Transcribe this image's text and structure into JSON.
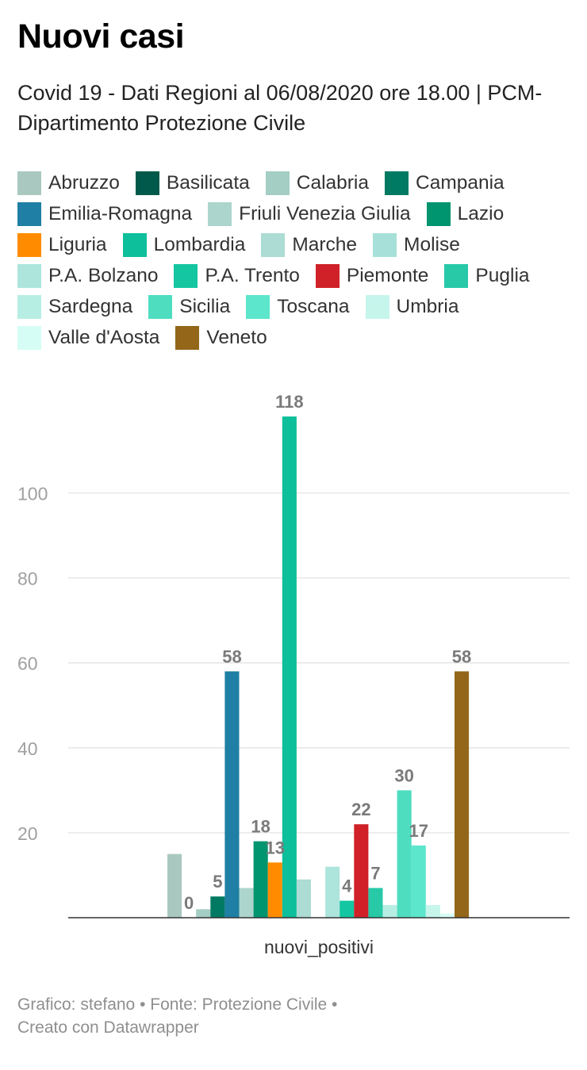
{
  "title": "Nuovi casi",
  "subtitle": "Covid 19 - Dati Regioni al 06/08/2020 ore 18.00 | PCM- Dipartimento Protezione Civile",
  "footer": {
    "line1": "Grafico: stefano • Fonte: Protezione Civile •",
    "line2": "Creato con Datawrapper"
  },
  "chart_data": {
    "type": "bar",
    "categories": [
      "nuovi_positivi"
    ],
    "xlabel": "",
    "ylabel": "",
    "ylim": [
      0,
      118
    ],
    "yticks": [
      20,
      40,
      60,
      80,
      100
    ],
    "grid": true,
    "legend_position": "top",
    "series": [
      {
        "name": "Abruzzo",
        "values": [
          15
        ],
        "color": "#a9c9c0",
        "label": ""
      },
      {
        "name": "Basilicata",
        "values": [
          0
        ],
        "color": "#00594a",
        "label": "0"
      },
      {
        "name": "Calabria",
        "values": [
          2
        ],
        "color": "#a4cdc4",
        "label": ""
      },
      {
        "name": "Campania",
        "values": [
          5
        ],
        "color": "#007a63",
        "label": "5"
      },
      {
        "name": "Emilia-Romagna",
        "values": [
          58
        ],
        "color": "#1f7fa4",
        "label": "58"
      },
      {
        "name": "Friuli Venezia Giulia",
        "values": [
          7
        ],
        "color": "#acd5cd",
        "label": ""
      },
      {
        "name": "Lazio",
        "values": [
          18
        ],
        "color": "#00946f",
        "label": "18"
      },
      {
        "name": "Liguria",
        "values": [
          13
        ],
        "color": "#ff8c00",
        "label": "13"
      },
      {
        "name": "Lombardia",
        "values": [
          118
        ],
        "color": "#0dbf9a",
        "label": "118"
      },
      {
        "name": "Marche",
        "values": [
          9
        ],
        "color": "#acdcd4",
        "label": ""
      },
      {
        "name": "Molise",
        "values": [
          0
        ],
        "color": "#a7e0d9",
        "label": ""
      },
      {
        "name": "P.A. Bolzano",
        "values": [
          12
        ],
        "color": "#ade5dc",
        "label": ""
      },
      {
        "name": "P.A. Trento",
        "values": [
          4
        ],
        "color": "#14c6a1",
        "label": "4"
      },
      {
        "name": "Piemonte",
        "values": [
          22
        ],
        "color": "#cf2127",
        "label": "22"
      },
      {
        "name": "Puglia",
        "values": [
          7
        ],
        "color": "#27c9a7",
        "label": "7"
      },
      {
        "name": "Sardegna",
        "values": [
          3
        ],
        "color": "#b7eee4",
        "label": ""
      },
      {
        "name": "Sicilia",
        "values": [
          30
        ],
        "color": "#4fddc0",
        "label": "30"
      },
      {
        "name": "Toscana",
        "values": [
          17
        ],
        "color": "#5ce6cc",
        "label": "17"
      },
      {
        "name": "Umbria",
        "values": [
          3
        ],
        "color": "#c6f5ec",
        "label": ""
      },
      {
        "name": "Valle d'Aosta",
        "values": [
          1
        ],
        "color": "#d6fdf5",
        "label": ""
      },
      {
        "name": "Veneto",
        "values": [
          58
        ],
        "color": "#936619",
        "label": "58"
      }
    ]
  }
}
